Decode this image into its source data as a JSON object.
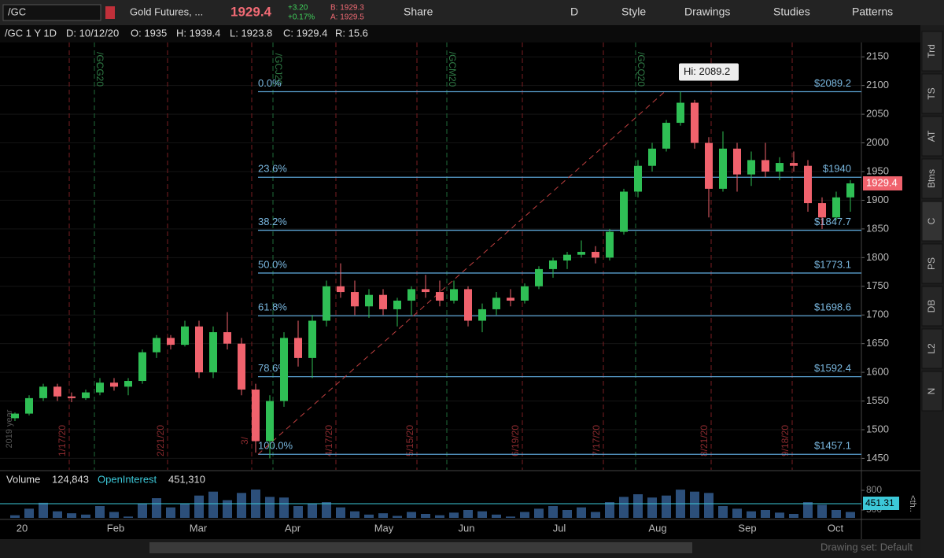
{
  "toolbar": {
    "symbol": "/GC",
    "description": "Gold Futures, ...",
    "last": "1929.4",
    "change": "+3.20",
    "change_pct": "+0.17%",
    "bid": "B: 1929.3",
    "ask": "A: 1929.5",
    "buttons": [
      "Share",
      "D",
      "Style",
      "Drawings",
      "Studies",
      "Patterns"
    ]
  },
  "info": {
    "title": "/GC 1 Y 1D",
    "date": "D: 10/12/20",
    "open": "O: 1935",
    "high": "H: 1939.4",
    "low": "L: 1923.8",
    "close": "C: 1929.4",
    "range": "R: 15.6"
  },
  "side_tabs": [
    "Trd",
    "TS",
    "AT",
    "Btns",
    "C",
    "PS",
    "DB",
    "L2",
    "N"
  ],
  "price_chart": {
    "type": "candlestick",
    "ylim": [
      1430,
      2175
    ],
    "yticks": [
      1450,
      1500,
      1550,
      1600,
      1650,
      1700,
      1750,
      1800,
      1850,
      1900,
      1950,
      2000,
      2050,
      2100,
      2150
    ],
    "last_price": 1929.4,
    "high_label": "Hi: 2089.2",
    "year_label": "2019 year",
    "candles": [
      [
        1520,
        1530,
        1515,
        1528
      ],
      [
        1528,
        1560,
        1525,
        1555
      ],
      [
        1555,
        1580,
        1550,
        1575
      ],
      [
        1575,
        1580,
        1550,
        1558
      ],
      [
        1558,
        1565,
        1548,
        1555
      ],
      [
        1555,
        1570,
        1552,
        1565
      ],
      [
        1565,
        1590,
        1560,
        1582
      ],
      [
        1582,
        1590,
        1568,
        1575
      ],
      [
        1575,
        1590,
        1560,
        1585
      ],
      [
        1585,
        1640,
        1580,
        1635
      ],
      [
        1635,
        1665,
        1625,
        1660
      ],
      [
        1660,
        1665,
        1640,
        1648
      ],
      [
        1648,
        1690,
        1645,
        1680
      ],
      [
        1680,
        1690,
        1590,
        1600
      ],
      [
        1600,
        1680,
        1590,
        1670
      ],
      [
        1670,
        1705,
        1640,
        1650
      ],
      [
        1650,
        1660,
        1560,
        1570
      ],
      [
        1570,
        1580,
        1460,
        1480
      ],
      [
        1480,
        1560,
        1450,
        1550
      ],
      [
        1550,
        1670,
        1540,
        1660
      ],
      [
        1660,
        1690,
        1610,
        1625
      ],
      [
        1625,
        1700,
        1590,
        1690
      ],
      [
        1690,
        1760,
        1680,
        1750
      ],
      [
        1750,
        1790,
        1730,
        1740
      ],
      [
        1740,
        1760,
        1700,
        1715
      ],
      [
        1715,
        1745,
        1695,
        1735
      ],
      [
        1735,
        1745,
        1700,
        1710
      ],
      [
        1710,
        1730,
        1680,
        1725
      ],
      [
        1725,
        1750,
        1700,
        1745
      ],
      [
        1745,
        1770,
        1730,
        1740
      ],
      [
        1740,
        1760,
        1715,
        1725
      ],
      [
        1725,
        1760,
        1720,
        1745
      ],
      [
        1745,
        1750,
        1680,
        1690
      ],
      [
        1690,
        1720,
        1670,
        1710
      ],
      [
        1710,
        1740,
        1700,
        1730
      ],
      [
        1730,
        1745,
        1715,
        1725
      ],
      [
        1725,
        1755,
        1720,
        1750
      ],
      [
        1750,
        1785,
        1745,
        1780
      ],
      [
        1780,
        1800,
        1765,
        1795
      ],
      [
        1795,
        1810,
        1780,
        1805
      ],
      [
        1805,
        1830,
        1800,
        1810
      ],
      [
        1810,
        1820,
        1790,
        1800
      ],
      [
        1800,
        1850,
        1795,
        1845
      ],
      [
        1845,
        1920,
        1840,
        1915
      ],
      [
        1915,
        1970,
        1905,
        1960
      ],
      [
        1960,
        2000,
        1950,
        1990
      ],
      [
        1990,
        2040,
        1985,
        2035
      ],
      [
        2035,
        2089.2,
        2030,
        2070
      ],
      [
        2070,
        2075,
        1990,
        2000
      ],
      [
        2000,
        2010,
        1870,
        1920
      ],
      [
        1920,
        2020,
        1915,
        1990
      ],
      [
        1990,
        2000,
        1915,
        1945
      ],
      [
        1945,
        1985,
        1925,
        1970
      ],
      [
        1970,
        2000,
        1940,
        1950
      ],
      [
        1950,
        1975,
        1935,
        1965
      ],
      [
        1965,
        1985,
        1950,
        1960
      ],
      [
        1960,
        1970,
        1880,
        1895
      ],
      [
        1895,
        1905,
        1850,
        1870
      ],
      [
        1870,
        1915,
        1865,
        1905
      ],
      [
        1905,
        1935,
        1880,
        1929.4
      ]
    ],
    "fib_levels": [
      {
        "pct": "0.0%",
        "value": 2089.2,
        "label": "$2089.2"
      },
      {
        "pct": "23.6%",
        "value": 1940,
        "label": "$1940"
      },
      {
        "pct": "38.2%",
        "value": 1847.7,
        "label": "$1847.7"
      },
      {
        "pct": "50.0%",
        "value": 1773.1,
        "label": "$1773.1"
      },
      {
        "pct": "61.8%",
        "value": 1698.6,
        "label": "$1698.6"
      },
      {
        "pct": "78.6%",
        "value": 1592.4,
        "label": "$1592.4"
      },
      {
        "pct": "100.0%",
        "value": 1457.1,
        "label": "$1457.1"
      }
    ],
    "event_lines": [
      "1/17/20",
      "2/21/20",
      "3/",
      "4/17/20",
      "5/15/20",
      "6/19/20",
      "7/17/20",
      "8/21/20",
      "9/18/20"
    ],
    "contract_lines": [
      "/GCG20",
      "/GCJ20",
      "/GCM20",
      "/GCQ20"
    ],
    "months": [
      "20",
      "Feb",
      "Mar",
      "Apr",
      "May",
      "Jun",
      "Jul",
      "Aug",
      "Sep",
      "Oct"
    ]
  },
  "volume_pane": {
    "label": "Volume",
    "volume": "124,843",
    "oi_label": "OpenInterest",
    "oi": "451,310",
    "yticks": [
      500,
      800
    ],
    "oi_marker": "451.31",
    "more": "<th..",
    "values": [
      420,
      520,
      610,
      480,
      450,
      430,
      560,
      470,
      400,
      590,
      680,
      540,
      600,
      720,
      780,
      650,
      760,
      820,
      700,
      690,
      560,
      600,
      620,
      540,
      480,
      430,
      450,
      410,
      470,
      440,
      420,
      460,
      500,
      480,
      430,
      400,
      470,
      520,
      560,
      500,
      540,
      470,
      620,
      700,
      740,
      690,
      720,
      810,
      780,
      760,
      560,
      520,
      480,
      500,
      460,
      440,
      620,
      580,
      500,
      470
    ]
  },
  "footer": {
    "drawing_set": "Drawing set: Default"
  }
}
